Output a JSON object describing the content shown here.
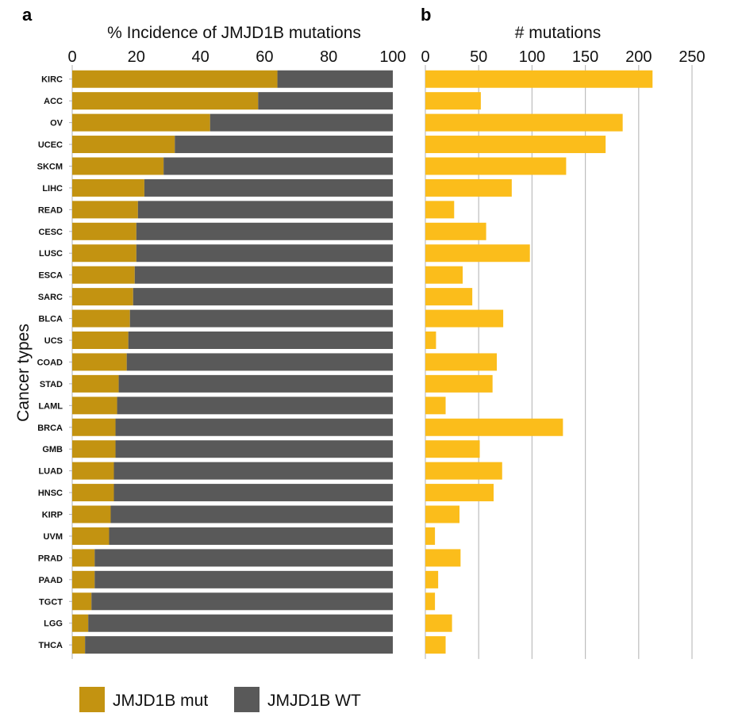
{
  "chart_data": [
    {
      "panel": "a",
      "type": "bar",
      "orientation": "horizontal",
      "stacked": true,
      "title": "% Incidence of JMJD1B mutations",
      "ylabel": "Cancer types",
      "xlim": [
        0,
        100
      ],
      "xticks": [
        "0",
        "20",
        "40",
        "60",
        "80",
        "100"
      ],
      "categories": [
        "KIRC",
        "ACC",
        "OV",
        "UCEC",
        "SKCM",
        "LIHC",
        "READ",
        "CESC",
        "LUSC",
        "ESCA",
        "SARC",
        "BLCA",
        "UCS",
        "COAD",
        "STAD",
        "LAML",
        "BRCA",
        "GMB",
        "LUAD",
        "HNSC",
        "KIRP",
        "UVM",
        "PRAD",
        "PAAD",
        "TGCT",
        "LGG",
        "THCA"
      ],
      "series": [
        {
          "name": "JMJD1B mut",
          "color": "#c39311",
          "values": [
            64,
            58,
            43,
            32,
            28.5,
            22.5,
            20.5,
            20,
            20,
            19.5,
            19,
            18,
            17.5,
            17,
            14.5,
            14,
            13.5,
            13.5,
            13,
            13,
            12,
            11.5,
            7,
            7,
            6,
            5,
            4
          ]
        },
        {
          "name": "JMJD1B WT",
          "color": "#595959",
          "values": [
            36,
            42,
            57,
            68,
            71.5,
            77.5,
            79.5,
            80,
            80,
            80.5,
            81,
            82,
            82.5,
            83,
            85.5,
            86,
            86.5,
            86.5,
            87,
            87,
            88,
            88.5,
            93,
            93,
            94,
            95,
            96
          ]
        }
      ],
      "legend": "bottom",
      "grid": false
    },
    {
      "panel": "b",
      "type": "bar",
      "orientation": "horizontal",
      "title": "# mutations",
      "xlim": [
        0,
        250
      ],
      "xticks": [
        "0",
        "50",
        "100",
        "150",
        "200",
        "250"
      ],
      "grid": true,
      "color": "#fbbd1b",
      "values": [
        213,
        52,
        185,
        169,
        132,
        81,
        27,
        57,
        98,
        35,
        44,
        73,
        10,
        67,
        63,
        19,
        129,
        51,
        72,
        64,
        32,
        9,
        33,
        12,
        9,
        25,
        19
      ]
    }
  ]
}
